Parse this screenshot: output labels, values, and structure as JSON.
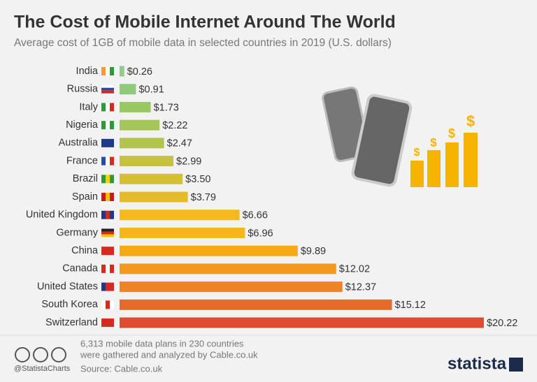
{
  "chart_data": {
    "type": "bar",
    "orientation": "horizontal",
    "title": "The Cost of Mobile Internet Around The World",
    "subtitle": "Average cost of 1GB of mobile data in selected countries in 2019 (U.S. dollars)",
    "categories": [
      "India",
      "Russia",
      "Italy",
      "Nigeria",
      "Australia",
      "France",
      "Brazil",
      "Spain",
      "United Kingdom",
      "Germany",
      "China",
      "Canada",
      "United States",
      "South Korea",
      "Switzerland"
    ],
    "values": [
      0.26,
      0.91,
      1.73,
      2.22,
      2.47,
      2.99,
      3.5,
      3.79,
      6.66,
      6.96,
      9.89,
      12.02,
      12.37,
      15.12,
      20.22
    ],
    "value_labels": [
      "$0.26",
      "$0.91",
      "$1.73",
      "$2.22",
      "$2.47",
      "$2.99",
      "$3.50",
      "$3.79",
      "$6.66",
      "$6.96",
      "$9.89",
      "$12.02",
      "$12.37",
      "$15.12",
      "$20.22"
    ],
    "colors": [
      "#8fcb8a",
      "#90c97c",
      "#99c763",
      "#a6c558",
      "#b2c44c",
      "#c4c240",
      "#d5bf36",
      "#e4bc2b",
      "#f5b81d",
      "#f6b51a",
      "#f6a915",
      "#f2981c",
      "#ee8426",
      "#e9692d",
      "#df4b33"
    ],
    "notes": [
      "6,313 mobile data plans in 230 countries",
      "were gathered and analyzed by Cable.co.uk"
    ],
    "source": "Source: Cable.co.uk"
  },
  "credit": "@StatistaCharts",
  "brand": "statista"
}
